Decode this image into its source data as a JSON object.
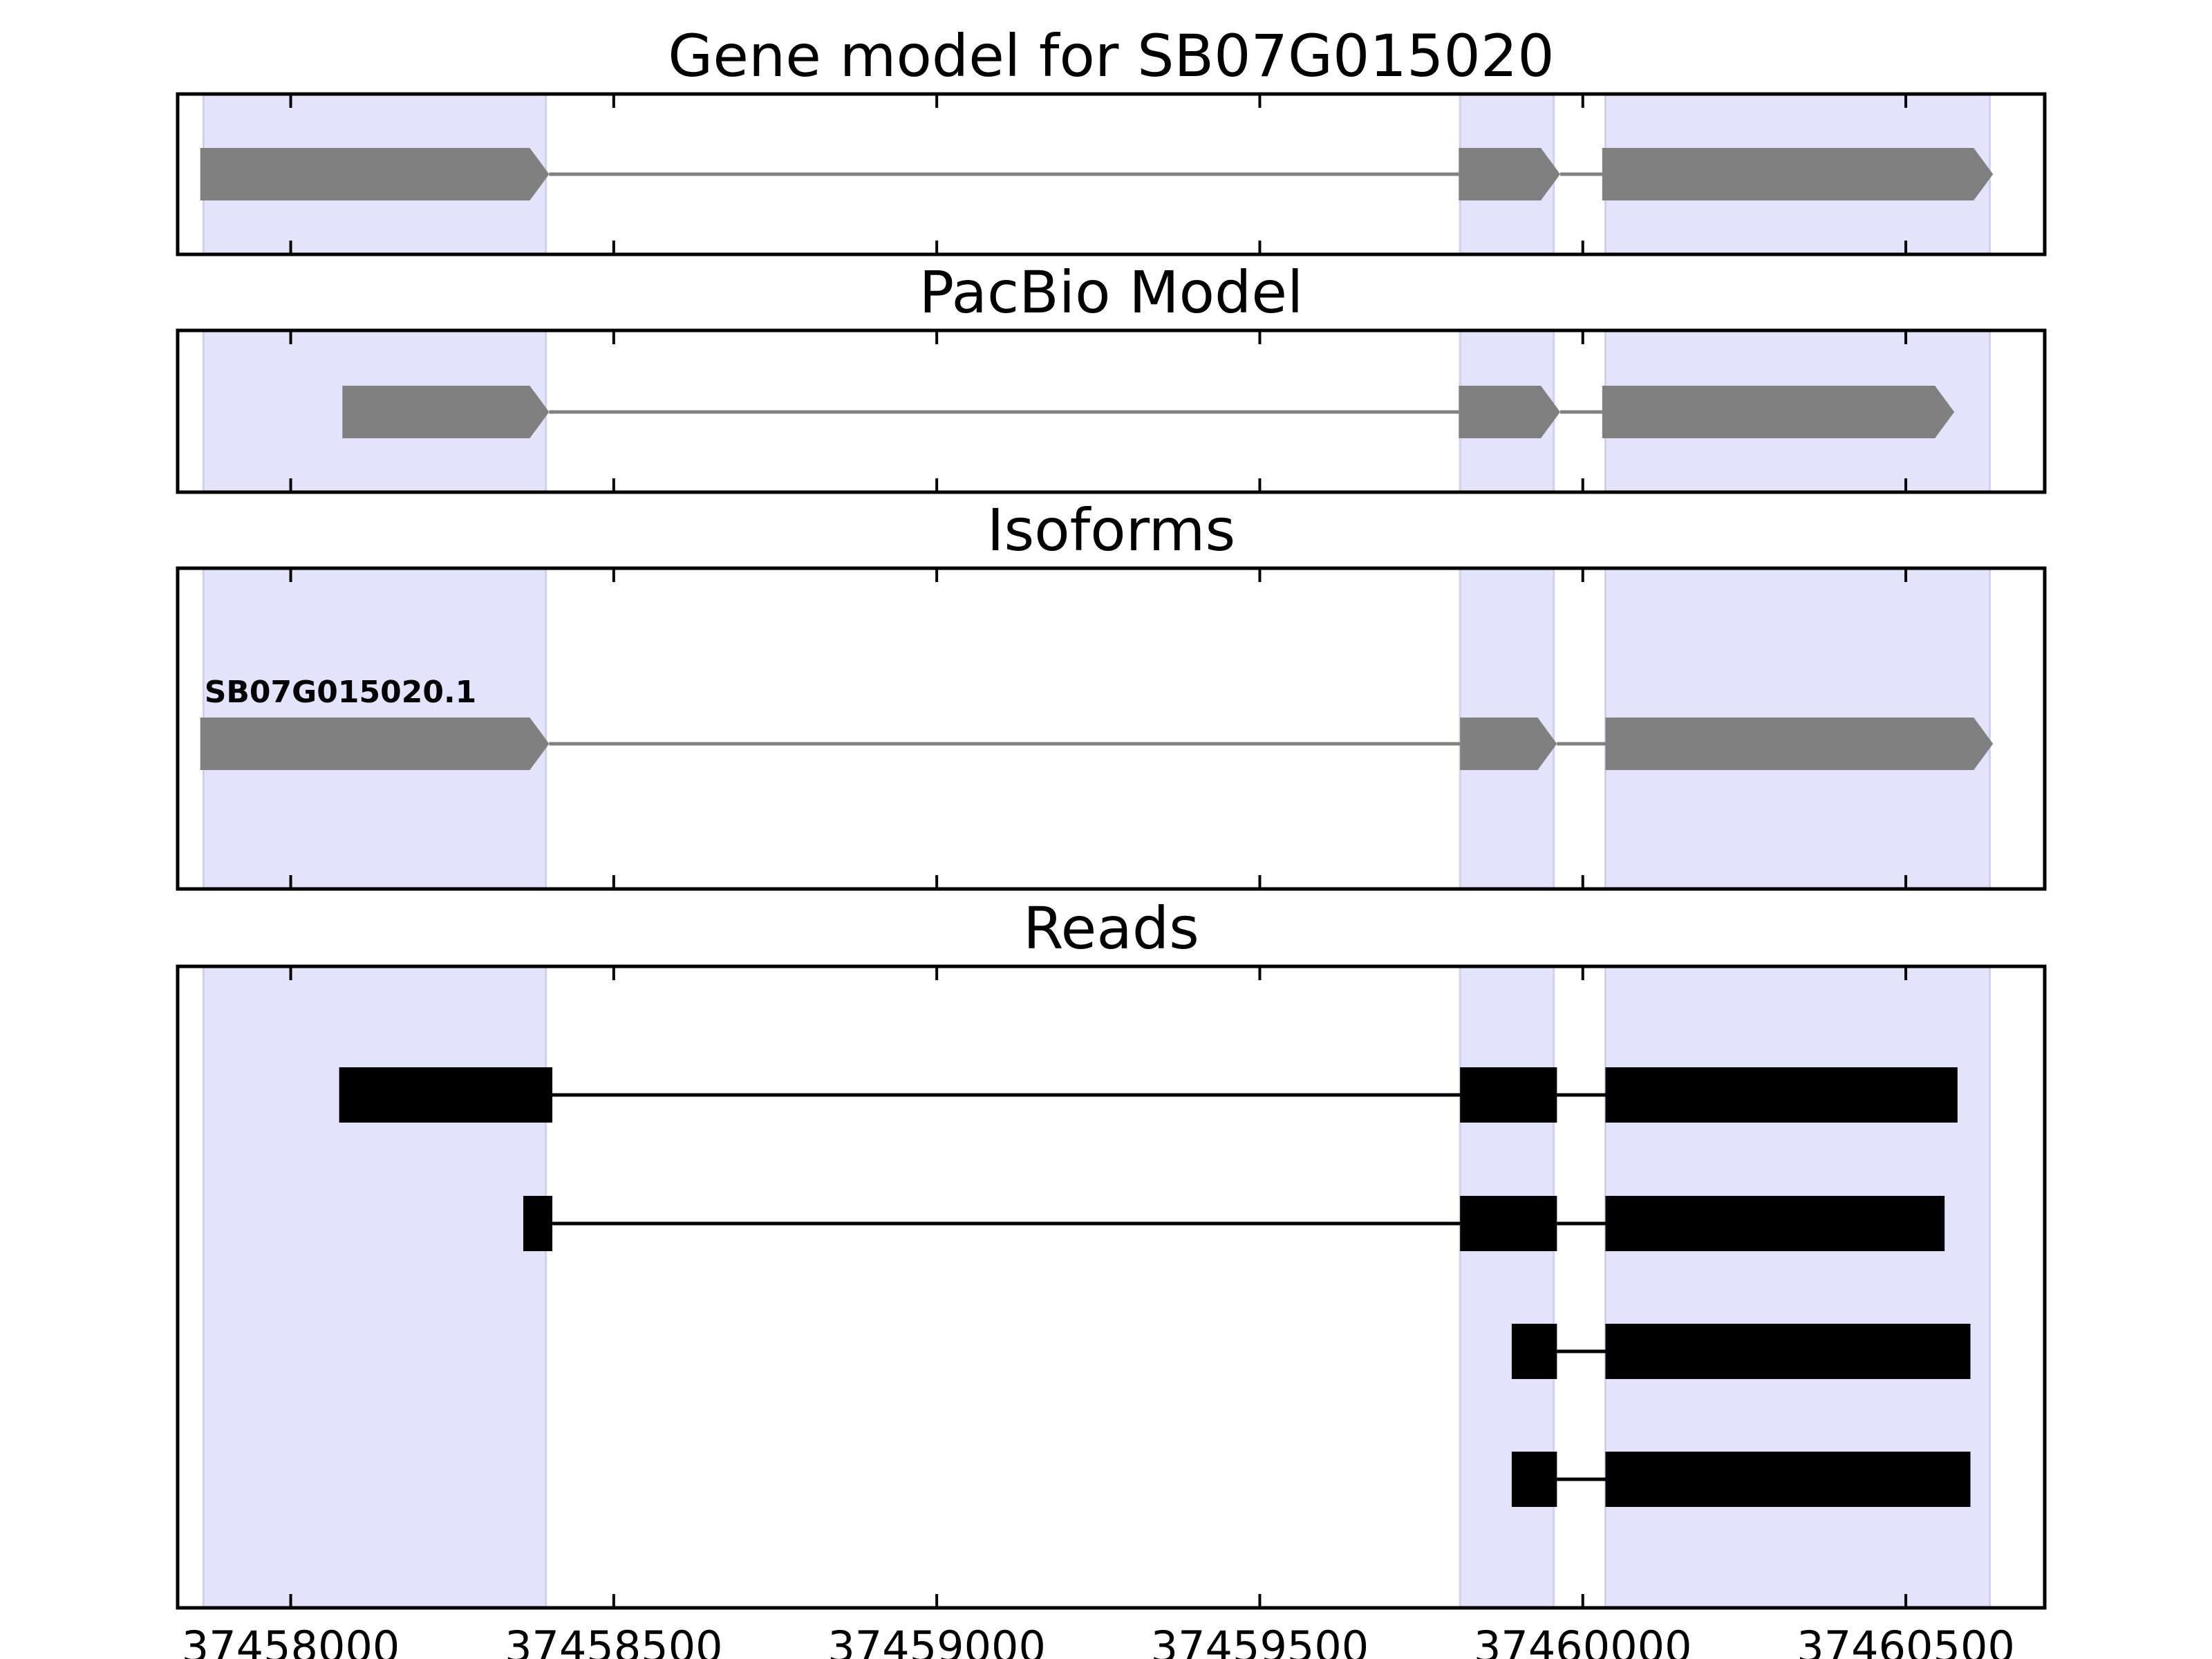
{
  "chart_data": {
    "type": "gene-structure",
    "xlim": [
      37457825,
      37460715
    ],
    "x_ticks": [
      37458000,
      37458500,
      37459000,
      37459500,
      37460000,
      37460500
    ],
    "grid": false,
    "colors": {
      "exon_shading": "#e3e3fb",
      "model": "#808080",
      "read": "#000000",
      "axis": "#000000"
    },
    "exon_regions": [
      [
        37457865,
        37458395
      ],
      [
        37459810,
        37459955
      ],
      [
        37460035,
        37460630
      ]
    ],
    "panels": [
      {
        "title": "Gene model for SB07G015020",
        "strand": "+",
        "features": [
          {
            "label": "",
            "exons": [
              [
                37457860,
                37458400
              ],
              [
                37459808,
                37459965
              ],
              [
                37460030,
                37460635
              ]
            ]
          }
        ]
      },
      {
        "title": "PacBio Model",
        "strand": "+",
        "features": [
          {
            "label": "",
            "exons": [
              [
                37458080,
                37458400
              ],
              [
                37459808,
                37459965
              ],
              [
                37460030,
                37460575
              ]
            ]
          }
        ]
      },
      {
        "title": "Isoforms",
        "strand": "+",
        "features": [
          {
            "label": "SB07G015020.1",
            "exons": [
              [
                37457860,
                37458400
              ],
              [
                37459810,
                37459960
              ],
              [
                37460035,
                37460635
              ]
            ]
          }
        ]
      },
      {
        "title": "Reads",
        "strand": "",
        "features": [
          {
            "label": "",
            "exons": [
              [
                37458075,
                37458405
              ],
              [
                37459810,
                37459960
              ],
              [
                37460035,
                37460580
              ]
            ]
          },
          {
            "label": "",
            "exons": [
              [
                37458360,
                37458405
              ],
              [
                37459810,
                37459960
              ],
              [
                37460035,
                37460560
              ]
            ]
          },
          {
            "label": "",
            "exons": [
              [
                37459890,
                37459960
              ],
              [
                37460035,
                37460600
              ]
            ]
          },
          {
            "label": "",
            "exons": [
              [
                37459890,
                37459960
              ],
              [
                37460035,
                37460600
              ]
            ]
          }
        ]
      }
    ]
  }
}
